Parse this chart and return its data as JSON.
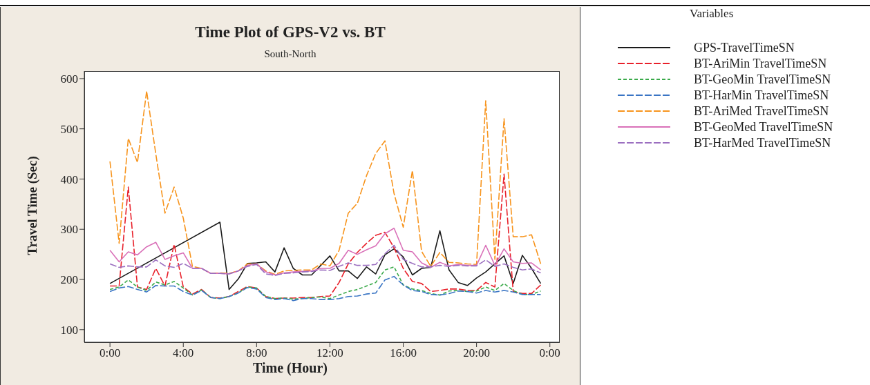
{
  "chart_data": {
    "type": "line",
    "title": "Time Plot of GPS-V2 vs. BT",
    "subtitle": "South-North",
    "xlabel": "Time (Hour)",
    "ylabel": "Travel Time (Sec)",
    "legend_title": "Variables",
    "legend": "right",
    "grid": false,
    "marker": "none",
    "xlim": [
      -1.4,
      24.5
    ],
    "xticks": [
      {
        "value": 0,
        "label": "0:00"
      },
      {
        "value": 4,
        "label": "4:00"
      },
      {
        "value": 8,
        "label": "8:00"
      },
      {
        "value": 12,
        "label": "12:00"
      },
      {
        "value": 16,
        "label": "16:00"
      },
      {
        "value": 20,
        "label": "20:00"
      },
      {
        "value": 24,
        "label": "0:00"
      }
    ],
    "ylim": [
      75,
      615
    ],
    "yticks": [
      100,
      200,
      300,
      400,
      500,
      600
    ],
    "x": [
      0,
      0.5,
      1,
      1.5,
      2,
      2.5,
      3,
      3.5,
      4,
      4.5,
      5,
      5.5,
      6,
      6.5,
      7,
      7.5,
      8,
      8.5,
      9,
      9.5,
      10,
      10.5,
      11,
      11.5,
      12,
      12.5,
      13,
      13.5,
      14,
      14.5,
      15,
      15.5,
      16,
      16.5,
      17,
      17.5,
      18,
      18.5,
      19,
      19.5,
      20,
      20.5,
      21,
      21.5,
      22,
      22.5,
      23,
      23.5
    ],
    "series": [
      {
        "name": "GPS-TravelTimeSN",
        "color": "#1a1a1a",
        "line_style": "solid",
        "x": [
          0,
          6,
          6.5,
          7,
          7.5,
          8,
          8.5,
          9,
          9.5,
          10,
          10.5,
          11,
          11.5,
          12,
          12.5,
          13,
          13.5,
          14,
          14.5,
          15,
          15.5,
          16,
          16.5,
          17,
          17.5,
          18,
          18.5,
          19,
          19.5,
          20,
          20.5,
          21,
          21.5,
          22,
          22.5,
          23,
          23.5
        ],
        "values": [
          192,
          314,
          180,
          201,
          232,
          233,
          235,
          215,
          263,
          222,
          209,
          209,
          228,
          247,
          217,
          217,
          202,
          225,
          211,
          249,
          261,
          245,
          209,
          222,
          224,
          297,
          219,
          194,
          188,
          203,
          215,
          231,
          247,
          192,
          248,
          222,
          192
        ]
      },
      {
        "name": "BT-AriMin TravelTimeSN",
        "color": "#e8202a",
        "line_style": "dashed",
        "values": [
          187,
          187,
          384,
          185,
          180,
          222,
          187,
          270,
          185,
          171,
          180,
          164,
          163,
          166,
          176,
          186,
          183,
          166,
          162,
          163,
          163,
          164,
          164,
          166,
          167,
          194,
          231,
          254,
          272,
          288,
          294,
          263,
          222,
          196,
          192,
          176,
          178,
          181,
          181,
          178,
          178,
          194,
          185,
          410,
          176,
          172,
          172,
          189
        ]
      },
      {
        "name": "BT-GeoMin TravelTimeSN",
        "color": "#3aaa4a",
        "line_style": "dotted",
        "values": [
          180,
          185,
          199,
          185,
          178,
          195,
          189,
          196,
          183,
          169,
          179,
          164,
          162,
          166,
          173,
          185,
          183,
          166,
          162,
          163,
          161,
          162,
          164,
          165,
          162,
          169,
          176,
          180,
          187,
          194,
          219,
          225,
          189,
          181,
          178,
          172,
          169,
          177,
          178,
          176,
          177,
          185,
          178,
          192,
          178,
          170,
          170,
          177
        ]
      },
      {
        "name": "BT-HarMin TravelTimeSN",
        "color": "#3a75c4",
        "line_style": "dashed",
        "values": [
          176,
          183,
          186,
          180,
          175,
          188,
          187,
          187,
          176,
          169,
          178,
          164,
          162,
          166,
          173,
          184,
          181,
          164,
          160,
          162,
          158,
          162,
          162,
          160,
          160,
          162,
          166,
          167,
          171,
          173,
          199,
          206,
          189,
          178,
          176,
          170,
          169,
          172,
          177,
          176,
          173,
          178,
          175,
          178,
          175,
          170,
          170,
          170
        ]
      },
      {
        "name": "BT-AriMed TravelTimeSN",
        "color": "#f7941d",
        "line_style": "dashed",
        "values": [
          435,
          272,
          481,
          433,
          575,
          450,
          332,
          384,
          322,
          226,
          222,
          212,
          213,
          212,
          217,
          231,
          231,
          217,
          210,
          217,
          218,
          219,
          219,
          231,
          227,
          258,
          332,
          352,
          407,
          451,
          476,
          371,
          304,
          417,
          256,
          226,
          254,
          234,
          233,
          231,
          230,
          556,
          240,
          520,
          285,
          285,
          289,
          231
        ]
      },
      {
        "name": "BT-GeoMed TravelTimeSN",
        "color": "#d970b8",
        "line_style": "solid",
        "values": [
          258,
          235,
          255,
          249,
          265,
          274,
          240,
          247,
          253,
          222,
          222,
          212,
          212,
          211,
          217,
          228,
          231,
          215,
          209,
          213,
          215,
          216,
          217,
          222,
          222,
          232,
          258,
          250,
          259,
          267,
          291,
          302,
          258,
          255,
          233,
          224,
          234,
          227,
          230,
          228,
          228,
          268,
          228,
          261,
          235,
          232,
          233,
          219
        ]
      },
      {
        "name": "BT-HarMed TravelTimeSN",
        "color": "#9b6fc0",
        "line_style": "dashed",
        "values": [
          231,
          224,
          227,
          225,
          225,
          239,
          227,
          224,
          232,
          222,
          222,
          212,
          212,
          211,
          217,
          226,
          230,
          211,
          208,
          212,
          213,
          215,
          216,
          219,
          218,
          226,
          233,
          228,
          228,
          230,
          251,
          268,
          240,
          232,
          225,
          225,
          228,
          226,
          228,
          227,
          227,
          239,
          226,
          231,
          224,
          219,
          221,
          213
        ]
      }
    ]
  }
}
